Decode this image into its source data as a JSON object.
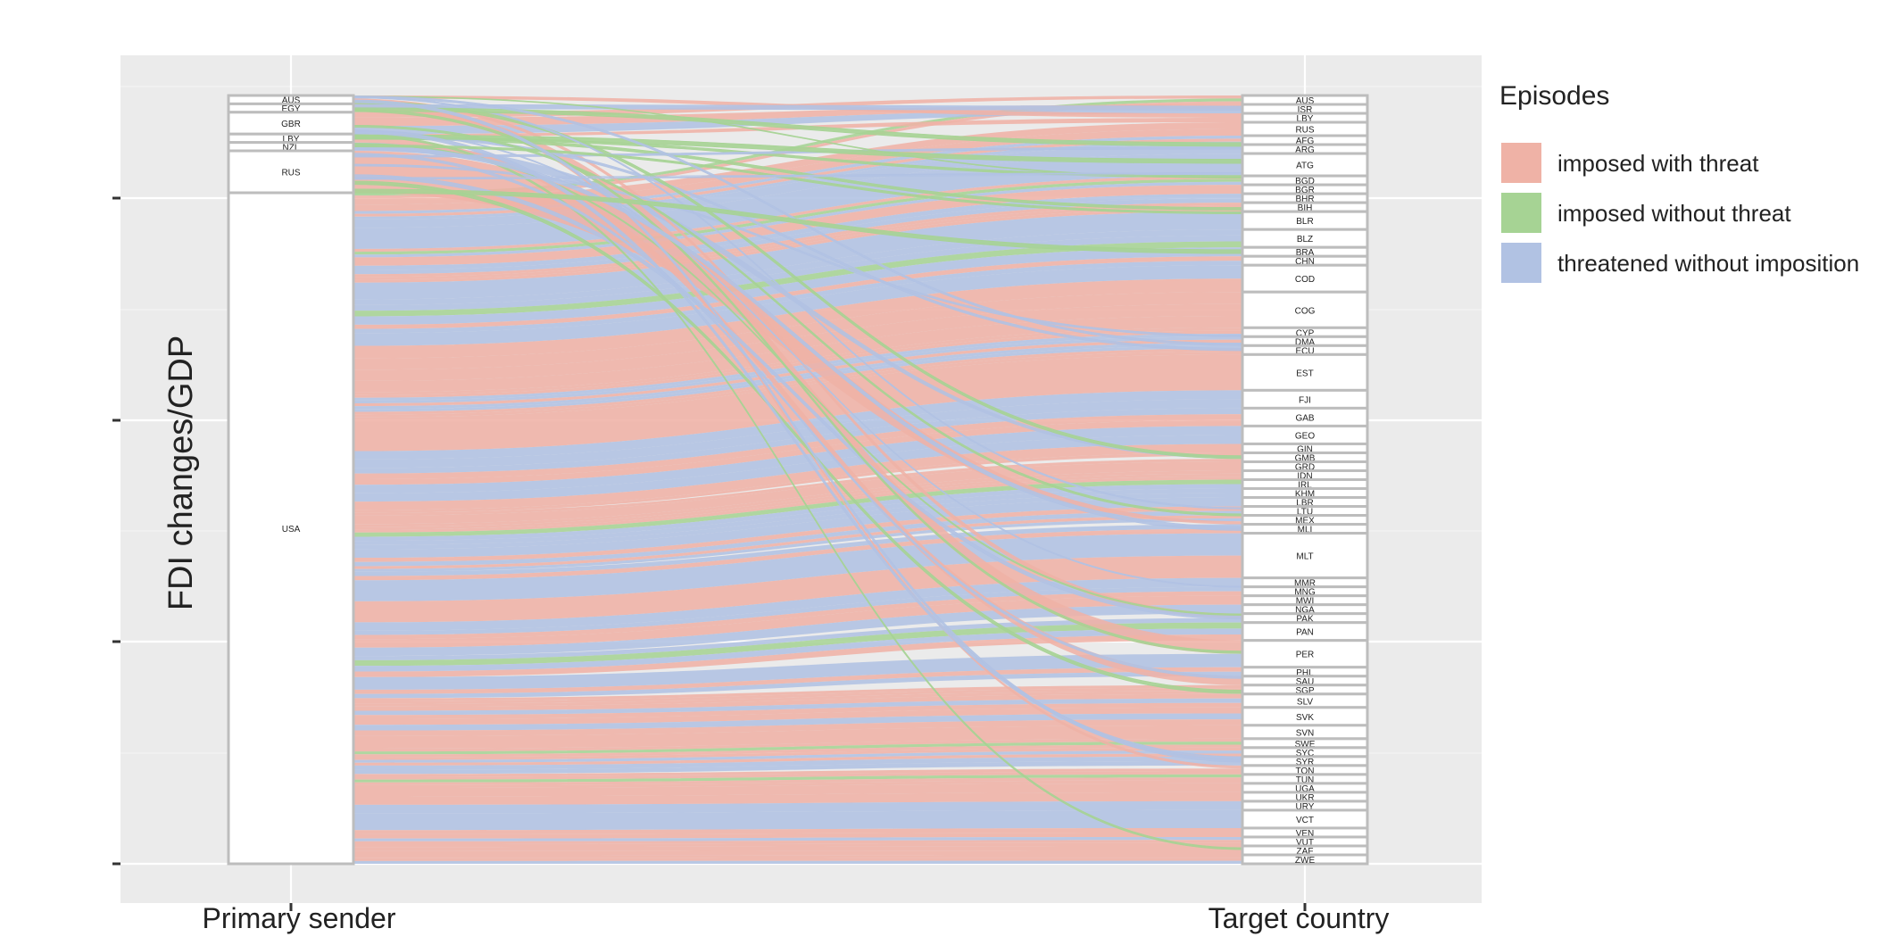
{
  "chart_data": {
    "type": "alluvial",
    "ylabel": "FDI changes/GDP",
    "axes": [
      "Primary sender",
      "Target country"
    ],
    "legend": {
      "title": "Episodes",
      "position": "right",
      "entries": [
        {
          "label": "imposed with threat",
          "color": "#efb2a6"
        },
        {
          "label": "imposed without threat",
          "color": "#a6d394"
        },
        {
          "label": "threatened without imposition",
          "color": "#b1c2e3"
        }
      ]
    },
    "senders": [
      {
        "code": "AUS",
        "size": 1
      },
      {
        "code": "EGY",
        "size": 1
      },
      {
        "code": "GBR",
        "size": 2.6
      },
      {
        "code": "LBY",
        "size": 1
      },
      {
        "code": "NZL",
        "size": 1
      },
      {
        "code": "RUS",
        "size": 5
      },
      {
        "code": "USA",
        "size": 80
      }
    ],
    "targets": [
      {
        "code": "AUS",
        "size": 1
      },
      {
        "code": "ISR",
        "size": 1
      },
      {
        "code": "LBY",
        "size": 1
      },
      {
        "code": "RUS",
        "size": 1.5
      },
      {
        "code": "AFG",
        "size": 1
      },
      {
        "code": "ARG",
        "size": 1
      },
      {
        "code": "ATG",
        "size": 2.5
      },
      {
        "code": "BGD",
        "size": 1
      },
      {
        "code": "BGR",
        "size": 1
      },
      {
        "code": "BHR",
        "size": 1
      },
      {
        "code": "BIH",
        "size": 1
      },
      {
        "code": "BLR",
        "size": 2
      },
      {
        "code": "BLZ",
        "size": 2
      },
      {
        "code": "BRA",
        "size": 1
      },
      {
        "code": "CHN",
        "size": 1
      },
      {
        "code": "COD",
        "size": 3
      },
      {
        "code": "COG",
        "size": 4
      },
      {
        "code": "CYP",
        "size": 1
      },
      {
        "code": "DMA",
        "size": 1
      },
      {
        "code": "ECU",
        "size": 1
      },
      {
        "code": "EST",
        "size": 4
      },
      {
        "code": "FJI",
        "size": 2
      },
      {
        "code": "GAB",
        "size": 2
      },
      {
        "code": "GEO",
        "size": 2
      },
      {
        "code": "GIN",
        "size": 1
      },
      {
        "code": "GMB",
        "size": 1
      },
      {
        "code": "GRD",
        "size": 1
      },
      {
        "code": "IDN",
        "size": 1
      },
      {
        "code": "IRL",
        "size": 1
      },
      {
        "code": "KHM",
        "size": 1
      },
      {
        "code": "LBR",
        "size": 1
      },
      {
        "code": "LTU",
        "size": 1
      },
      {
        "code": "MEX",
        "size": 1
      },
      {
        "code": "MLI",
        "size": 1
      },
      {
        "code": "MLT",
        "size": 5
      },
      {
        "code": "MMR",
        "size": 1
      },
      {
        "code": "MNG",
        "size": 1
      },
      {
        "code": "MWI",
        "size": 1
      },
      {
        "code": "NGA",
        "size": 1
      },
      {
        "code": "PAK",
        "size": 1
      },
      {
        "code": "PAN",
        "size": 2
      },
      {
        "code": "PER",
        "size": 3
      },
      {
        "code": "PHL",
        "size": 1
      },
      {
        "code": "SAU",
        "size": 1
      },
      {
        "code": "SGP",
        "size": 1
      },
      {
        "code": "SLV",
        "size": 1.5
      },
      {
        "code": "SVK",
        "size": 2
      },
      {
        "code": "SVN",
        "size": 1.5
      },
      {
        "code": "SWE",
        "size": 1
      },
      {
        "code": "SYC",
        "size": 1
      },
      {
        "code": "SYR",
        "size": 1
      },
      {
        "code": "TON",
        "size": 1
      },
      {
        "code": "TUN",
        "size": 1
      },
      {
        "code": "UGA",
        "size": 1
      },
      {
        "code": "UKR",
        "size": 1
      },
      {
        "code": "URY",
        "size": 1
      },
      {
        "code": "VCT",
        "size": 2
      },
      {
        "code": "VEN",
        "size": 1
      },
      {
        "code": "VUT",
        "size": 1
      },
      {
        "code": "ZAF",
        "size": 1
      },
      {
        "code": "ZWE",
        "size": 1
      }
    ],
    "flow_colors": [
      "#efb2a6",
      "#a6d394",
      "#b1c2e3"
    ]
  }
}
